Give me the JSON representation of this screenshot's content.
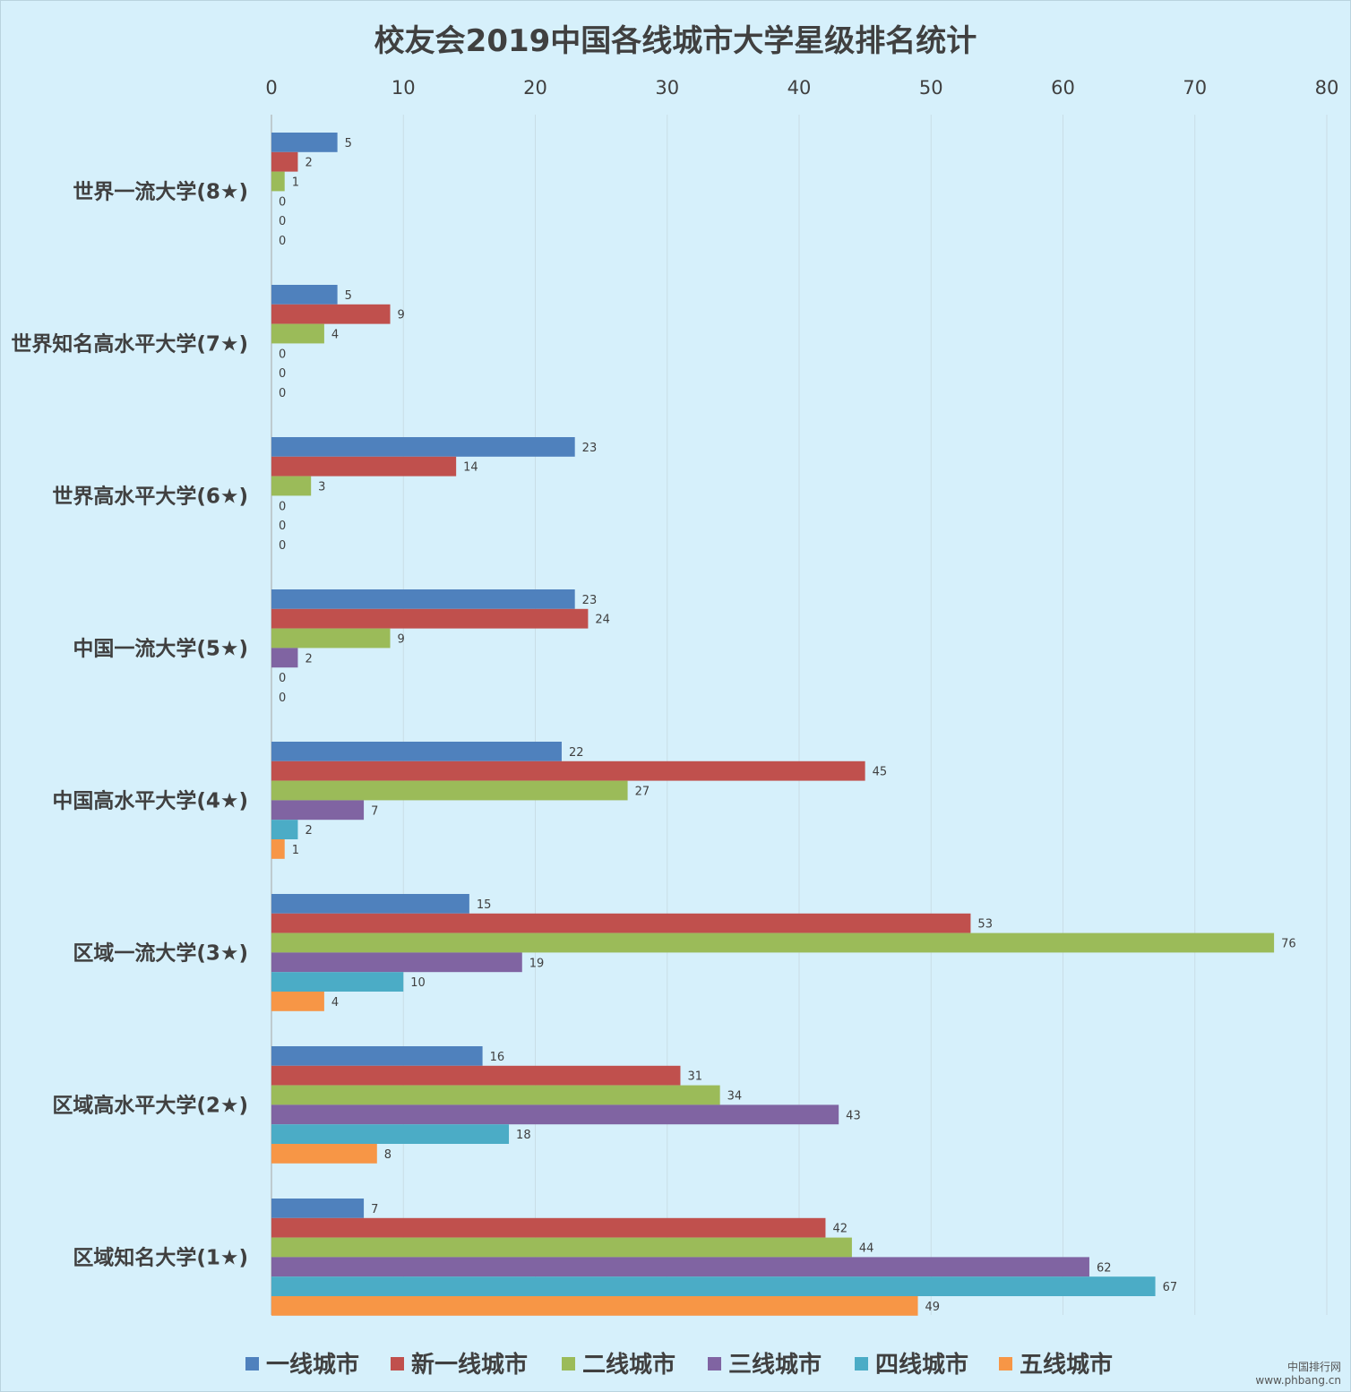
{
  "chart_data": {
    "type": "bar",
    "orientation": "horizontal",
    "title": "校友会2019中国各线城市大学星级排名统计",
    "xlabel": "",
    "ylabel": "",
    "xlim": [
      0,
      80
    ],
    "x_ticks": [
      0,
      10,
      20,
      30,
      40,
      50,
      60,
      70,
      80
    ],
    "x_axis_position": "top",
    "grid": true,
    "legend_position": "bottom",
    "categories": [
      "世界一流大学(8★)",
      "世界知名高水平大学(7★)",
      "世界高水平大学(6★)",
      "中国一流大学(5★)",
      "中国高水平大学(4★)",
      "区域一流大学(3★)",
      "区域高水平大学(2★)",
      "区域知名大学(1★)"
    ],
    "series": [
      {
        "name": "一线城市",
        "color": "#4f81bd",
        "values": [
          5,
          5,
          23,
          23,
          22,
          15,
          16,
          7
        ]
      },
      {
        "name": "新一线城市",
        "color": "#c0504d",
        "values": [
          2,
          9,
          14,
          24,
          45,
          53,
          31,
          42
        ]
      },
      {
        "name": "二线城市",
        "color": "#9bbb59",
        "values": [
          1,
          4,
          3,
          9,
          27,
          76,
          34,
          44
        ]
      },
      {
        "name": "三线城市",
        "color": "#8064a2",
        "values": [
          0,
          0,
          0,
          2,
          7,
          19,
          43,
          62
        ]
      },
      {
        "name": "四线城市",
        "color": "#4bacc6",
        "values": [
          0,
          0,
          0,
          0,
          2,
          10,
          18,
          67
        ]
      },
      {
        "name": "五线城市",
        "color": "#f79646",
        "values": [
          0,
          0,
          0,
          0,
          1,
          4,
          8,
          49
        ]
      }
    ]
  },
  "watermark": {
    "line1": "中国排行网",
    "line2": "www.phbang.cn"
  }
}
